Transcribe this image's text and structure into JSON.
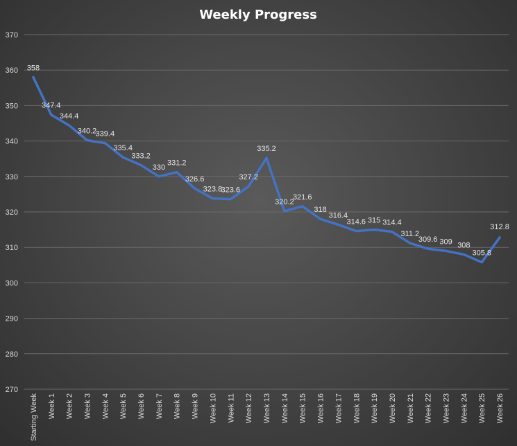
{
  "chart_data": {
    "type": "line",
    "title": "Weekly Progress",
    "xlabel": "",
    "ylabel": "",
    "ylim": [
      270,
      370
    ],
    "ytick_step": 10,
    "grid": true,
    "legend": "none",
    "series_color": "#4472c4",
    "categories": [
      "Starting Week",
      "Week 1",
      "Week 2",
      "Week 3",
      "Week 4",
      "Week 5",
      "Week 6",
      "Week 7",
      "Week 8",
      "Week 9",
      "Week 10",
      "Week 11",
      "Week 12",
      "Week 13",
      "Week 14",
      "Week 15",
      "Week 16",
      "Week 17",
      "Week 18",
      "Week 19",
      "Week 20",
      "Week 21",
      "Week 22",
      "Week 23",
      "Week 24",
      "Week 25",
      "Week 26"
    ],
    "values": [
      358,
      347.4,
      344.4,
      340.2,
      339.4,
      335.4,
      333.2,
      330,
      331.2,
      326.6,
      323.8,
      323.6,
      327.2,
      335.2,
      320.2,
      321.6,
      318,
      316.4,
      314.6,
      315,
      314.4,
      311.2,
      309.6,
      309,
      308,
      305.8,
      312.8
    ]
  }
}
